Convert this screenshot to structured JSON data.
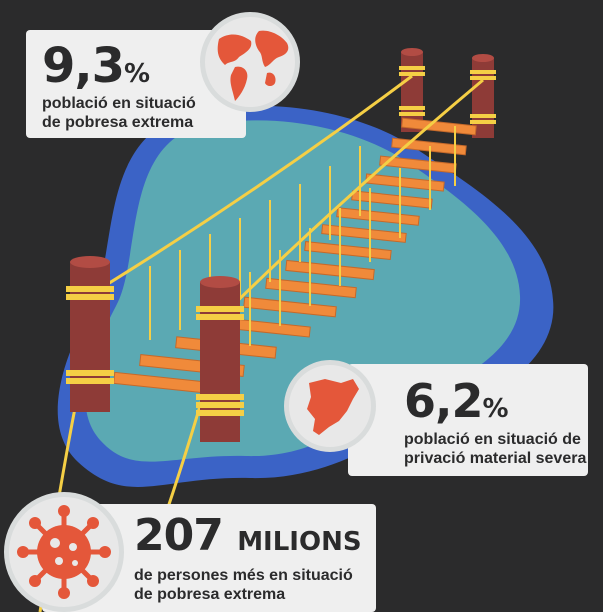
{
  "stats": [
    {
      "value": "9,3",
      "unit": "%",
      "line1": "població en situació",
      "line2": "de pobresa extrema",
      "icon": "globe-icon"
    },
    {
      "value": "6,2",
      "unit": "%",
      "line1": "població en situació de",
      "line2": "privació material severa",
      "icon": "catalonia-map-icon"
    },
    {
      "value": "207",
      "unit": "MILIONS",
      "line1": "de persones més en situació",
      "line2": "de pobresa extrema",
      "icon": "virus-icon"
    }
  ],
  "colors": {
    "background": "#2b2b2c",
    "water_outer": "#3b63c6",
    "water_inner": "#5ba9b3",
    "plank": "#f08a3a",
    "post": "#8e3b37",
    "rope": "#f5cf45",
    "accent": "#e4573a",
    "card": "#efefef"
  }
}
